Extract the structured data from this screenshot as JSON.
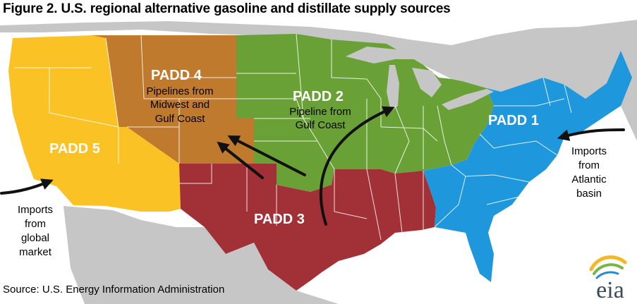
{
  "title": "Figure 2. U.S. regional alternative gasoline and distillate supply sources",
  "regions": {
    "padd1": {
      "name": "PADD 1",
      "color": "#1f97dc"
    },
    "padd2": {
      "name": "PADD 2",
      "desc1": "Pipeline from",
      "desc2": "Gulf Coast",
      "color": "#6aa137"
    },
    "padd3": {
      "name": "PADD 3",
      "color": "#a23137"
    },
    "padd4": {
      "name": "PADD 4",
      "desc1": "Pipelines from",
      "desc2": "Midwest and",
      "desc3": "Gulf Coast",
      "color": "#bf7a2e"
    },
    "padd5": {
      "name": "PADD 5",
      "color": "#fbc226"
    }
  },
  "imports": {
    "atlantic": {
      "line1": "Imports",
      "line2": "from",
      "line3": "Atlantic",
      "line4": "basin"
    },
    "global": {
      "line1": "Imports",
      "line2": "from",
      "line3": "global",
      "line4": "market"
    }
  },
  "source": "Source: U.S. Energy Information Administration",
  "logo_text": "eia",
  "colors": {
    "land": "#c6c6c6",
    "border": "#ffffff",
    "arrow": "#111111",
    "logo_wave1": "#f5b825",
    "logo_wave2": "#79b542",
    "logo_wave3": "#2a8ad1"
  }
}
